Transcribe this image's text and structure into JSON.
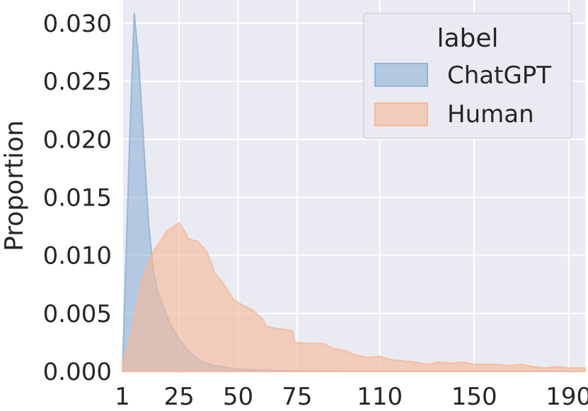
{
  "chart_data": {
    "type": "area",
    "title": "",
    "xlabel": "",
    "ylabel": "Proportion",
    "xlim": [
      1,
      197
    ],
    "ylim": [
      0,
      0.032
    ],
    "x_ticks": [
      1,
      25,
      50,
      75,
      110,
      150,
      190
    ],
    "y_ticks": [
      0.0,
      0.005,
      0.01,
      0.015,
      0.02,
      0.025,
      0.03
    ],
    "y_tick_labels": [
      "0.000",
      "0.005",
      "0.010",
      "0.015",
      "0.020",
      "0.025",
      "0.030"
    ],
    "grid": true,
    "legend": {
      "title": "label",
      "placement": "top-right"
    },
    "series": [
      {
        "name": "ChatGPT",
        "color": "#92b4d6",
        "x": [
          1,
          2,
          4,
          6,
          8,
          10,
          12,
          14,
          16,
          18,
          21,
          25,
          30,
          35,
          40,
          50,
          60,
          75,
          100,
          150,
          197
        ],
        "values": [
          0.0,
          0.0062,
          0.0195,
          0.0309,
          0.0265,
          0.0198,
          0.013,
          0.0088,
          0.0068,
          0.0058,
          0.0042,
          0.0028,
          0.0015,
          0.0008,
          0.0005,
          0.0002,
          0.0001,
          5e-05,
          2e-05,
          1e-05,
          0.0
        ]
      },
      {
        "name": "Human",
        "color": "#f6b99a",
        "x": [
          1,
          3,
          5,
          7,
          9,
          11,
          13,
          15,
          17,
          20,
          23,
          25,
          27,
          29,
          33,
          37,
          40,
          44,
          48,
          52,
          56,
          60,
          62,
          66,
          70,
          73,
          74,
          80,
          86,
          90,
          95,
          100,
          105,
          110,
          115,
          120,
          125,
          130,
          135,
          140,
          145,
          150,
          155,
          160,
          165,
          170,
          175,
          180,
          185,
          190,
          197
        ],
        "values": [
          0.0007,
          0.0018,
          0.0033,
          0.0055,
          0.0075,
          0.0088,
          0.0098,
          0.0106,
          0.0112,
          0.0121,
          0.0125,
          0.0128,
          0.0122,
          0.0114,
          0.0112,
          0.0102,
          0.0085,
          0.0075,
          0.0062,
          0.0057,
          0.0053,
          0.0046,
          0.0039,
          0.0037,
          0.0036,
          0.0035,
          0.0025,
          0.0024,
          0.0024,
          0.002,
          0.0018,
          0.0014,
          0.0012,
          0.0013,
          0.001,
          0.0009,
          0.0008,
          0.0006,
          0.0008,
          0.0007,
          0.0008,
          0.0006,
          0.0006,
          0.0006,
          0.0005,
          0.0006,
          0.0004,
          0.0003,
          0.0004,
          0.0003,
          0.0003
        ]
      }
    ]
  }
}
